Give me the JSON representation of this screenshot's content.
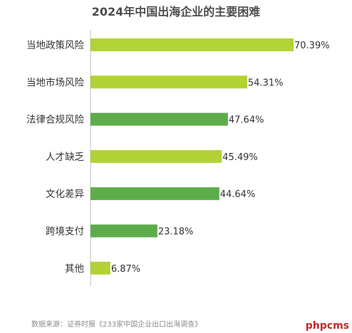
{
  "chart_data": {
    "type": "bar",
    "orientation": "horizontal",
    "title": "2024年中国出海企业的主要困难",
    "categories": [
      "当地政策风险",
      "当地市场风险",
      "法律合规风险",
      "人才缺乏",
      "文化差异",
      "跨境支付",
      "其他"
    ],
    "values": [
      70.39,
      54.31,
      47.64,
      45.49,
      44.64,
      23.18,
      6.87
    ],
    "value_labels": [
      "70.39%",
      "54.31%",
      "47.64%",
      "45.49%",
      "44.64%",
      "23.18%",
      "6.87%"
    ],
    "bar_colors": [
      "#b2d235",
      "#b2d235",
      "#5cad4a",
      "#b2d235",
      "#5cad4a",
      "#5cad4a",
      "#b2d235"
    ],
    "xlim": [
      0,
      70.39
    ],
    "grid": false,
    "legend": "none"
  },
  "source_note": "数据来源：证券时报《233家中国企业出口出海调查》",
  "watermark": "phpcms"
}
